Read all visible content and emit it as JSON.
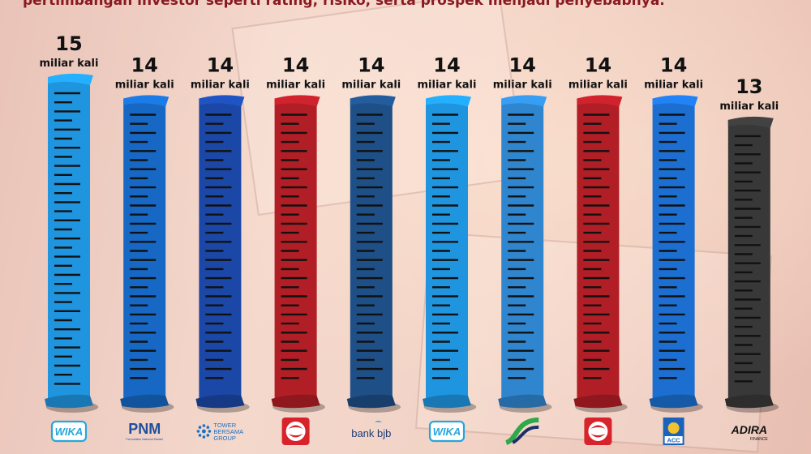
{
  "caption": "pertimbangan investor seperti rating, risiko, serta prospek menjadi penyebabnya.",
  "chart_data": {
    "type": "bar",
    "categories": [
      "WIKA",
      "PNM",
      "TOWER BERSAMA GROUP",
      "Sinarmas",
      "bank bjb",
      "WIKA",
      "Jasa Marga",
      "Sinarmas",
      "ACC",
      "ADIRA FINANCE"
    ],
    "values": [
      15,
      14,
      14,
      14,
      14,
      14,
      14,
      14,
      14,
      13
    ],
    "value_labels": [
      "15",
      "14",
      "14",
      "14",
      "14",
      "14",
      "14",
      "14",
      "14",
      "13"
    ],
    "unit_label": "miliar kali",
    "ylim": [
      0,
      15
    ],
    "colors": [
      "#1f95e0",
      "#1768c4",
      "#1b47a6",
      "#b11e26",
      "#1e4f86",
      "#1f95e0",
      "#2f86cf",
      "#b11e26",
      "#1c6fd0",
      "#383838"
    ],
    "grid": false,
    "legend": "none",
    "logo_texts": {
      "wika": "WIKA",
      "pnm": "PNM",
      "pnm_sub": "Permodalan Nasional Madani",
      "tower_1": "TOWER",
      "tower_2": "BERSAMA",
      "tower_3": "GROUP",
      "bjb": "bank bjb",
      "acc": "ACC",
      "adira": "ADIRA",
      "adira_sub": "FINANCE"
    }
  }
}
